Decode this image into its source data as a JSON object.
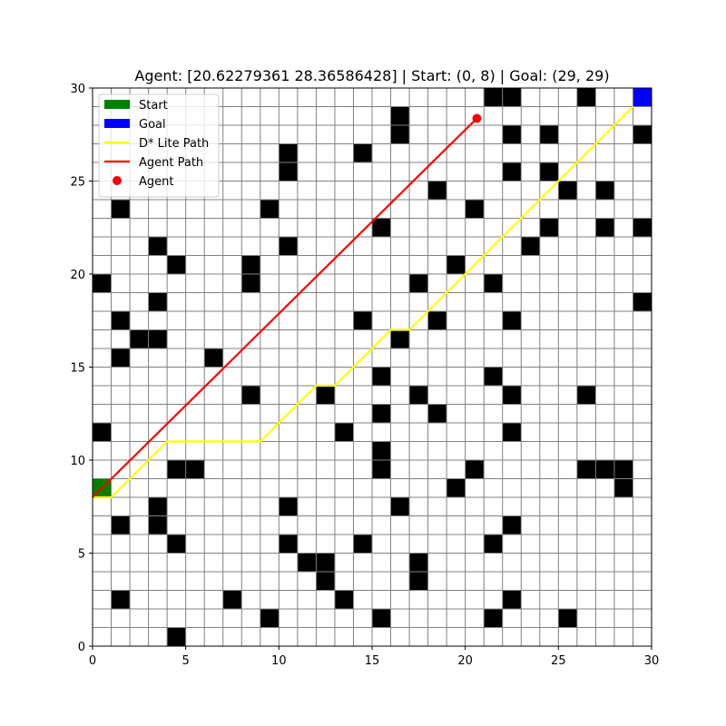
{
  "chart_data": {
    "type": "heatmap",
    "title": "Agent: [20.62279361 28.36586428] | Start: (0, 8) | Goal: (29, 29)",
    "xlim": [
      0,
      30
    ],
    "ylim": [
      0,
      30
    ],
    "xticks": [
      0,
      5,
      10,
      15,
      20,
      25,
      30
    ],
    "yticks": [
      0,
      5,
      10,
      15,
      20,
      25,
      30
    ],
    "xtick_labels": [
      "0",
      "5",
      "10",
      "15",
      "20",
      "25",
      "30"
    ],
    "ytick_labels": [
      "0",
      "5",
      "10",
      "15",
      "20",
      "25",
      "30"
    ],
    "grid": true,
    "grid_size": 30,
    "legend_position": "top-left",
    "start": {
      "x": 0,
      "y": 8
    },
    "goal": {
      "x": 29,
      "y": 29
    },
    "obstacles": [
      [
        21,
        29
      ],
      [
        22,
        29
      ],
      [
        26,
        29
      ],
      [
        16,
        28
      ],
      [
        16,
        27
      ],
      [
        22,
        27
      ],
      [
        24,
        27
      ],
      [
        29,
        27
      ],
      [
        10,
        26
      ],
      [
        14,
        26
      ],
      [
        10,
        25
      ],
      [
        22,
        25
      ],
      [
        24,
        25
      ],
      [
        18,
        24
      ],
      [
        25,
        24
      ],
      [
        27,
        24
      ],
      [
        1,
        23
      ],
      [
        9,
        23
      ],
      [
        20,
        23
      ],
      [
        15,
        22
      ],
      [
        24,
        22
      ],
      [
        27,
        22
      ],
      [
        29,
        22
      ],
      [
        3,
        21
      ],
      [
        10,
        21
      ],
      [
        23,
        21
      ],
      [
        4,
        20
      ],
      [
        8,
        20
      ],
      [
        19,
        20
      ],
      [
        0,
        19
      ],
      [
        8,
        19
      ],
      [
        17,
        19
      ],
      [
        21,
        19
      ],
      [
        3,
        18
      ],
      [
        29,
        18
      ],
      [
        1,
        17
      ],
      [
        14,
        17
      ],
      [
        18,
        17
      ],
      [
        22,
        17
      ],
      [
        2,
        16
      ],
      [
        3,
        16
      ],
      [
        16,
        16
      ],
      [
        1,
        15
      ],
      [
        6,
        15
      ],
      [
        15,
        14
      ],
      [
        21,
        14
      ],
      [
        8,
        13
      ],
      [
        12,
        13
      ],
      [
        17,
        13
      ],
      [
        22,
        13
      ],
      [
        26,
        13
      ],
      [
        15,
        12
      ],
      [
        18,
        12
      ],
      [
        0,
        11
      ],
      [
        13,
        11
      ],
      [
        22,
        11
      ],
      [
        15,
        10
      ],
      [
        4,
        9
      ],
      [
        5,
        9
      ],
      [
        15,
        9
      ],
      [
        20,
        9
      ],
      [
        26,
        9
      ],
      [
        27,
        9
      ],
      [
        28,
        9
      ],
      [
        19,
        8
      ],
      [
        28,
        8
      ],
      [
        3,
        7
      ],
      [
        10,
        7
      ],
      [
        16,
        7
      ],
      [
        1,
        6
      ],
      [
        3,
        6
      ],
      [
        22,
        6
      ],
      [
        4,
        5
      ],
      [
        10,
        5
      ],
      [
        14,
        5
      ],
      [
        21,
        5
      ],
      [
        11,
        4
      ],
      [
        12,
        4
      ],
      [
        17,
        4
      ],
      [
        12,
        3
      ],
      [
        17,
        3
      ],
      [
        1,
        2
      ],
      [
        7,
        2
      ],
      [
        13,
        2
      ],
      [
        22,
        2
      ],
      [
        9,
        1
      ],
      [
        15,
        1
      ],
      [
        21,
        1
      ],
      [
        25,
        1
      ],
      [
        4,
        0
      ]
    ],
    "series": [
      {
        "name": "D* Lite Path",
        "color": "#ffff00",
        "points": [
          [
            0,
            8
          ],
          [
            1,
            8
          ],
          [
            2,
            9
          ],
          [
            3,
            10
          ],
          [
            4,
            11
          ],
          [
            5,
            11
          ],
          [
            6,
            11
          ],
          [
            7,
            11
          ],
          [
            8,
            11
          ],
          [
            9,
            11
          ],
          [
            10,
            12
          ],
          [
            11,
            13
          ],
          [
            12,
            14
          ],
          [
            13,
            14
          ],
          [
            14,
            15
          ],
          [
            15,
            16
          ],
          [
            16,
            17
          ],
          [
            17,
            17
          ],
          [
            18,
            18
          ],
          [
            19,
            19
          ],
          [
            20,
            20
          ],
          [
            21,
            21
          ],
          [
            22,
            22
          ],
          [
            23,
            23
          ],
          [
            24,
            24
          ],
          [
            25,
            25
          ],
          [
            26,
            26
          ],
          [
            27,
            27
          ],
          [
            28,
            28
          ],
          [
            29,
            29
          ]
        ]
      },
      {
        "name": "Agent Path",
        "color": "#ff0000",
        "points": [
          [
            0,
            8
          ],
          [
            20.62279361,
            28.36586428
          ]
        ]
      }
    ],
    "agent": {
      "name": "Agent",
      "color": "#ff0000",
      "x": 20.62279361,
      "y": 28.36586428
    },
    "legend": [
      {
        "label": "Start",
        "kind": "patch",
        "color": "#008000"
      },
      {
        "label": "Goal",
        "kind": "patch",
        "color": "#0000ff"
      },
      {
        "label": "D* Lite Path",
        "kind": "line",
        "color": "#ffff00"
      },
      {
        "label": "Agent Path",
        "kind": "line",
        "color": "#ff0000"
      },
      {
        "label": "Agent",
        "kind": "marker",
        "color": "#ff0000"
      }
    ]
  }
}
